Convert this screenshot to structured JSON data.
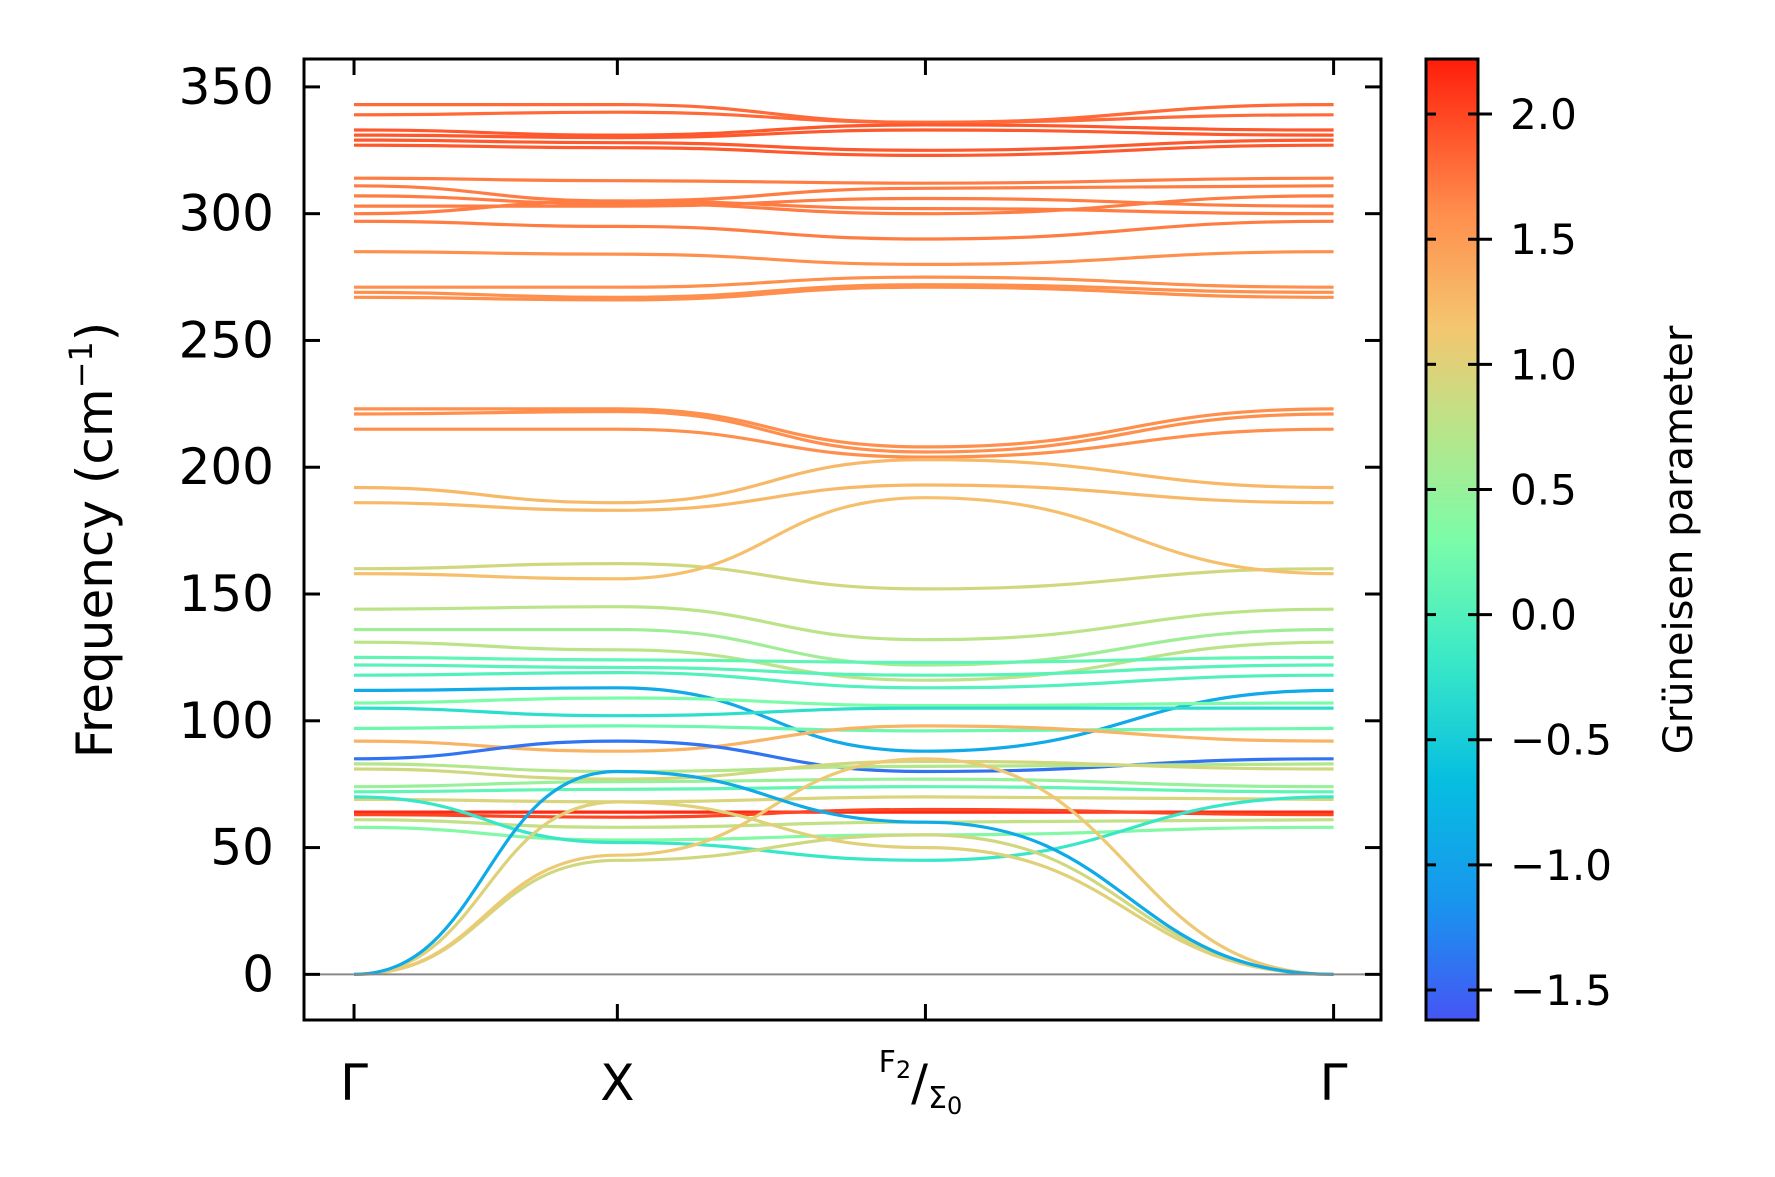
{
  "chart_data": {
    "type": "line",
    "title": "",
    "xlabel": "",
    "ylabel": {
      "prefix": "Frequency (cm",
      "sup": "−1",
      "suffix": ")"
    },
    "ylim": [
      -18,
      361
    ],
    "yticks": [
      {
        "value": 0,
        "label": "0"
      },
      {
        "value": 50,
        "label": "50"
      },
      {
        "value": 100,
        "label": "100"
      },
      {
        "value": 150,
        "label": "150"
      },
      {
        "value": 200,
        "label": "200"
      },
      {
        "value": 250,
        "label": "250"
      },
      {
        "value": 300,
        "label": "300"
      },
      {
        "value": 350,
        "label": "350"
      }
    ],
    "x": [
      0.0,
      1.0,
      2.17,
      3.72
    ],
    "xlim": [
      -0.19,
      3.9
    ],
    "xtick_labels": [
      "Γ",
      "X",
      "",
      "Γ"
    ],
    "special_label": {
      "f": "F",
      "f_sub": "2",
      "sep": "/",
      "s": "Σ",
      "s_sub": "0"
    },
    "zero_line": 0,
    "colorbar": {
      "label": "Grüneisen parameter",
      "range": [
        -1.62,
        2.22
      ],
      "ticks": [
        {
          "value": 2.0,
          "label": "2.0"
        },
        {
          "value": 1.5,
          "label": "1.5"
        },
        {
          "value": 1.0,
          "label": "1.0"
        },
        {
          "value": 0.5,
          "label": "0.5"
        },
        {
          "value": 0.0,
          "label": "0.0"
        },
        {
          "value": -0.5,
          "label": "−0.5"
        },
        {
          "value": -1.0,
          "label": "−1.0"
        },
        {
          "value": -1.5,
          "label": "−1.5"
        }
      ],
      "colormap": "rainbow"
    },
    "bands": [
      {
        "f": [
          343,
          343,
          336,
          343
        ],
        "g": 1.8
      },
      {
        "f": [
          339,
          340,
          336,
          339
        ],
        "g": 1.8
      },
      {
        "f": [
          333,
          331,
          335,
          333
        ],
        "g": 1.9
      },
      {
        "f": [
          331,
          330,
          333,
          331
        ],
        "g": 1.9
      },
      {
        "f": [
          329,
          328,
          325,
          329
        ],
        "g": 1.9
      },
      {
        "f": [
          327,
          326,
          323,
          327
        ],
        "g": 1.9
      },
      {
        "f": [
          314,
          313,
          312,
          314
        ],
        "g": 1.7
      },
      {
        "f": [
          311,
          305,
          310,
          311
        ],
        "g": 1.7
      },
      {
        "f": [
          307,
          304,
          300,
          307
        ],
        "g": 1.7
      },
      {
        "f": [
          303,
          303,
          306,
          303
        ],
        "g": 1.7
      },
      {
        "f": [
          300,
          305,
          302,
          300
        ],
        "g": 1.7
      },
      {
        "f": [
          297,
          295,
          290,
          297
        ],
        "g": 1.7
      },
      {
        "f": [
          285,
          284,
          280,
          285
        ],
        "g": 1.6
      },
      {
        "f": [
          271,
          271,
          275,
          271
        ],
        "g": 1.6
      },
      {
        "f": [
          269,
          267,
          272,
          269
        ],
        "g": 1.6
      },
      {
        "f": [
          267,
          266,
          271,
          267
        ],
        "g": 1.6
      },
      {
        "f": [
          223,
          223,
          208,
          223
        ],
        "g": 1.6
      },
      {
        "f": [
          221,
          222,
          206,
          221
        ],
        "g": 1.6
      },
      {
        "f": [
          215,
          215,
          204,
          215
        ],
        "g": 1.6
      },
      {
        "f": [
          192,
          186,
          203,
          192
        ],
        "g": 1.25
      },
      {
        "f": [
          186,
          183,
          193,
          186
        ],
        "g": 1.25
      },
      {
        "f": [
          160,
          162,
          152,
          160
        ],
        "g": 0.9
      },
      {
        "f": [
          158,
          156,
          188,
          158
        ],
        "g": 1.2
      },
      {
        "f": [
          144,
          145,
          132,
          144
        ],
        "g": 0.75
      },
      {
        "f": [
          136,
          136,
          122,
          136
        ],
        "g": 0.55
      },
      {
        "f": [
          131,
          128,
          116,
          131
        ],
        "g": 0.75
      },
      {
        "f": [
          125,
          124,
          123,
          125
        ],
        "g": 0.1
      },
      {
        "f": [
          122,
          121,
          118,
          122
        ],
        "g": 0.05
      },
      {
        "f": [
          118,
          119,
          113,
          118
        ],
        "g": 0.0
      },
      {
        "f": [
          112,
          113,
          88,
          112
        ],
        "g": -0.9
      },
      {
        "f": [
          107,
          109,
          106,
          107
        ],
        "g": 0.3
      },
      {
        "f": [
          105,
          102,
          105,
          105
        ],
        "g": -0.3
      },
      {
        "f": [
          97,
          98,
          96,
          97
        ],
        "g": 0.2
      },
      {
        "f": [
          92,
          88,
          98,
          92
        ],
        "g": 1.3
      },
      {
        "f": [
          85,
          92,
          80,
          85
        ],
        "g": -1.4
      },
      {
        "f": [
          83,
          80,
          82,
          83
        ],
        "g": 0.7
      },
      {
        "f": [
          81,
          77,
          84,
          81
        ],
        "g": 0.9
      },
      {
        "f": [
          74,
          76,
          77,
          74
        ],
        "g": 0.5
      },
      {
        "f": [
          72,
          73,
          74,
          72
        ],
        "g": 0.1
      },
      {
        "f": [
          69,
          68,
          70,
          69
        ],
        "g": 0.95
      },
      {
        "f": [
          64,
          64,
          64,
          64
        ],
        "g": 2.15
      },
      {
        "f": [
          63,
          62,
          65,
          63
        ],
        "g": 2.0
      },
      {
        "f": [
          61,
          58,
          60,
          61
        ],
        "g": 0.8
      },
      {
        "f": [
          58,
          53,
          55,
          58
        ],
        "g": 0.35
      },
      {
        "f": [
          70,
          52,
          45,
          70
        ],
        "g": -0.2
      },
      {
        "f": [
          0,
          45,
          55,
          0
        ],
        "g": 0.9
      },
      {
        "f": [
          0,
          47,
          85,
          0
        ],
        "g": 1.1
      },
      {
        "f": [
          0,
          68,
          50,
          0
        ],
        "g": 1.0
      },
      {
        "f": [
          0,
          80,
          60,
          0
        ],
        "g": -0.9
      }
    ]
  }
}
